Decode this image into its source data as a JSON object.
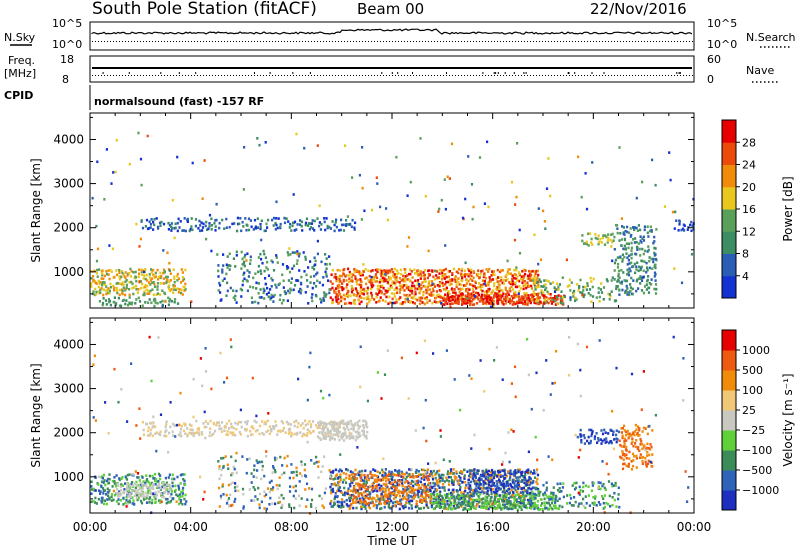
{
  "header": {
    "station": "South Pole Station (fitACF)",
    "beam": "Beam 00",
    "date": "22/Nov/2016"
  },
  "top_panels": {
    "nsky_label": "N.Sky",
    "nsky_ticks": [
      "10^5",
      "10^0"
    ],
    "nsearch_label": "N.Search",
    "nsearch_ticks": [
      "10^5",
      "10^0"
    ],
    "freq_label_1": "Freq.",
    "freq_label_2": "[MHz]",
    "freq_ticks": [
      "18",
      "8"
    ],
    "nave_label": "Nave",
    "nave_ticks": [
      "60",
      "0"
    ],
    "cpid_label": "CPID",
    "cpid_text": "normalsound (fast) -157 RF"
  },
  "colors": {
    "power": [
      "#1432d2",
      "#2a5db5",
      "#3c8c64",
      "#5aa05a",
      "#e8c81e",
      "#f08c0a",
      "#eb4a0a",
      "#e60000"
    ],
    "velocity": [
      "#1d2fbf",
      "#2e63b8",
      "#3c8c5a",
      "#5fcf3a",
      "#c8c8c0",
      "#f0c878",
      "#f08c0a",
      "#ee5a10",
      "#e60000"
    ]
  },
  "chart_data": [
    {
      "type": "heatmap",
      "title": "Power",
      "ylabel": "Slant Range [km]",
      "xlabel": "",
      "ylim": [
        180,
        4600
      ],
      "xlim": [
        0,
        24
      ],
      "yticks": [
        1000,
        2000,
        3000,
        4000
      ],
      "xticks": [
        "00:00",
        "04:00",
        "08:00",
        "12:00",
        "16:00",
        "20:00",
        "00:00"
      ],
      "colorbar": {
        "label": "Power [dB]",
        "ticks": [
          "28",
          "24",
          "20",
          "16",
          "12",
          "8",
          "4"
        ]
      },
      "regions": [
        {
          "t0": 0.0,
          "t1": 3.8,
          "r0": 500,
          "r1": 1100,
          "levels": [
            3,
            4,
            5
          ],
          "density": 0.65
        },
        {
          "t0": 0.3,
          "t1": 3.5,
          "r0": 250,
          "r1": 450,
          "levels": [
            2,
            3
          ],
          "density": 0.4
        },
        {
          "t0": 2.0,
          "t1": 10.5,
          "r0": 1950,
          "r1": 2250,
          "levels": [
            0,
            1,
            2
          ],
          "density": 0.5
        },
        {
          "t0": 9.5,
          "t1": 17.8,
          "r0": 300,
          "r1": 1100,
          "levels": [
            4,
            5,
            6,
            7
          ],
          "density": 0.75
        },
        {
          "t0": 13.8,
          "t1": 18.8,
          "r0": 280,
          "r1": 520,
          "levels": [
            6,
            7
          ],
          "density": 0.85
        },
        {
          "t0": 5.0,
          "t1": 9.5,
          "r0": 300,
          "r1": 1500,
          "levels": [
            0,
            1,
            2,
            3
          ],
          "density": 0.25
        },
        {
          "t0": 17.5,
          "t1": 21.0,
          "r0": 300,
          "r1": 900,
          "levels": [
            2,
            3,
            4
          ],
          "density": 0.3
        },
        {
          "t0": 19.5,
          "t1": 20.8,
          "r0": 1600,
          "r1": 1900,
          "levels": [
            3,
            4
          ],
          "density": 0.55
        },
        {
          "t0": 20.8,
          "t1": 22.5,
          "r0": 500,
          "r1": 2100,
          "levels": [
            1,
            2,
            3
          ],
          "density": 0.45
        },
        {
          "t0": 23.2,
          "t1": 24.0,
          "r0": 1950,
          "r1": 2200,
          "levels": [
            0,
            1
          ],
          "density": 0.5
        },
        {
          "t0": 0.0,
          "t1": 24.0,
          "r0": 200,
          "r1": 4200,
          "levels": [
            0,
            1,
            2,
            3,
            4,
            5,
            6
          ],
          "density": 0.012
        }
      ]
    },
    {
      "type": "heatmap",
      "title": "Velocity",
      "ylabel": "Slant Range [km]",
      "xlabel": "Time UT",
      "ylim": [
        180,
        4600
      ],
      "xlim": [
        0,
        24
      ],
      "yticks": [
        1000,
        2000,
        3000,
        4000
      ],
      "xticks": [
        "00:00",
        "04:00",
        "08:00",
        "12:00",
        "16:00",
        "20:00",
        "00:00"
      ],
      "colorbar": {
        "label": "Velocity [m s⁻¹]",
        "ticks": [
          "1000",
          "500",
          "100",
          "25",
          "−25",
          "−100",
          "−500",
          "−1000"
        ]
      },
      "regions": [
        {
          "t0": 0.0,
          "t1": 3.8,
          "r0": 400,
          "r1": 1100,
          "levels": [
            1,
            2,
            3
          ],
          "density": 0.6
        },
        {
          "t0": 1.0,
          "t1": 3.2,
          "r0": 550,
          "r1": 900,
          "levels": [
            4
          ],
          "density": 0.7
        },
        {
          "t0": 2.0,
          "t1": 10.5,
          "r0": 1950,
          "r1": 2300,
          "levels": [
            4,
            5
          ],
          "density": 0.5
        },
        {
          "t0": 9.0,
          "t1": 11.0,
          "r0": 1850,
          "r1": 2300,
          "levels": [
            4
          ],
          "density": 0.7
        },
        {
          "t0": 9.5,
          "t1": 17.8,
          "r0": 300,
          "r1": 1200,
          "levels": [
            0,
            1,
            2,
            6
          ],
          "density": 0.7
        },
        {
          "t0": 10.2,
          "t1": 13.5,
          "r0": 400,
          "r1": 1100,
          "levels": [
            6,
            7
          ],
          "density": 0.45
        },
        {
          "t0": 13.5,
          "t1": 18.5,
          "r0": 280,
          "r1": 650,
          "levels": [
            3,
            2
          ],
          "density": 0.8
        },
        {
          "t0": 15.0,
          "t1": 17.5,
          "r0": 650,
          "r1": 1200,
          "levels": [
            0,
            1
          ],
          "density": 0.6
        },
        {
          "t0": 5.0,
          "t1": 9.5,
          "r0": 300,
          "r1": 1500,
          "levels": [
            1,
            2,
            4,
            6
          ],
          "density": 0.2
        },
        {
          "t0": 19.3,
          "t1": 21.0,
          "r0": 1750,
          "r1": 2100,
          "levels": [
            0,
            1
          ],
          "density": 0.6
        },
        {
          "t0": 21.0,
          "t1": 22.3,
          "r0": 1200,
          "r1": 2200,
          "levels": [
            6,
            7
          ],
          "density": 0.5
        },
        {
          "t0": 17.5,
          "t1": 21.0,
          "r0": 300,
          "r1": 900,
          "levels": [
            1,
            2,
            3
          ],
          "density": 0.3
        },
        {
          "t0": 0.0,
          "t1": 24.0,
          "r0": 200,
          "r1": 4200,
          "levels": [
            0,
            1,
            2,
            3,
            4,
            5,
            6,
            7,
            8
          ],
          "density": 0.012
        }
      ]
    }
  ]
}
